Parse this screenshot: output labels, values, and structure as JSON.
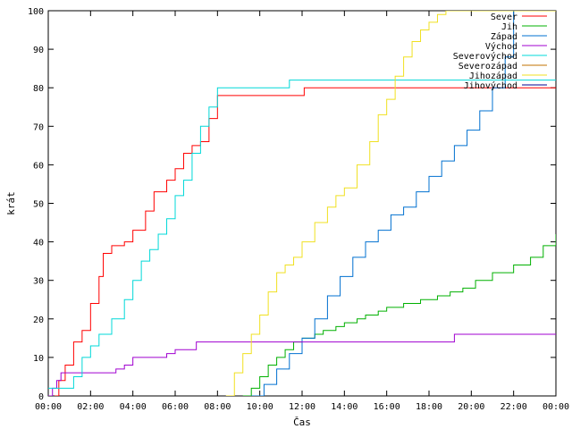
{
  "chart_data": {
    "type": "line",
    "title": "",
    "xlabel": "Čas",
    "ylabel": "krát",
    "xlim": [
      0,
      24
    ],
    "ylim": [
      0,
      100
    ],
    "x_ticks": [
      "00:00",
      "02:00",
      "04:00",
      "06:00",
      "08:00",
      "10:00",
      "12:00",
      "14:00",
      "16:00",
      "18:00",
      "20:00",
      "22:00",
      "00:00"
    ],
    "y_ticks": [
      0,
      10,
      20,
      30,
      40,
      50,
      60,
      70,
      80,
      90,
      100
    ],
    "grid": false,
    "legend_position": "top-right",
    "series": [
      {
        "name": "Sever",
        "color": "#ff0000",
        "x": [
          0.3,
          0.5,
          0.8,
          1.2,
          1.6,
          2.0,
          2.4,
          2.6,
          3.0,
          3.6,
          4.0,
          4.6,
          5.0,
          5.6,
          6.0,
          6.4,
          6.8,
          7.2,
          7.6,
          8.0,
          12.0,
          12.1,
          24.0
        ],
        "y": [
          0,
          4,
          8,
          14,
          17,
          24,
          31,
          37,
          39,
          40,
          43,
          48,
          53,
          56,
          59,
          63,
          65,
          66,
          72,
          78,
          78,
          80,
          80
        ]
      },
      {
        "name": "Jih",
        "color": "#00b000",
        "x": [
          9.2,
          9.6,
          10.0,
          10.4,
          10.8,
          11.2,
          11.6,
          12.0,
          12.6,
          13.0,
          13.6,
          14.0,
          14.6,
          15.0,
          15.6,
          16.0,
          16.8,
          17.6,
          18.4,
          19.0,
          19.6,
          20.2,
          21.0,
          22.0,
          22.8,
          23.4,
          24.0
        ],
        "y": [
          0,
          2,
          5,
          8,
          10,
          12,
          14,
          15,
          16,
          17,
          18,
          19,
          20,
          21,
          22,
          23,
          24,
          25,
          26,
          27,
          28,
          30,
          32,
          34,
          36,
          39,
          42
        ]
      },
      {
        "name": "Západ",
        "color": "#0070d0",
        "x": [
          9.6,
          10.2,
          10.8,
          11.4,
          12.0,
          12.6,
          13.2,
          13.8,
          14.4,
          15.0,
          15.6,
          16.2,
          16.8,
          17.4,
          18.0,
          18.6,
          19.2,
          19.8,
          20.4,
          21.0,
          21.6,
          22.0,
          24.0
        ],
        "y": [
          0,
          3,
          7,
          11,
          15,
          20,
          26,
          31,
          36,
          40,
          43,
          47,
          49,
          53,
          57,
          61,
          65,
          69,
          74,
          80,
          88,
          100,
          100
        ]
      },
      {
        "name": "Východ",
        "color": "#a000d0",
        "x": [
          0,
          0.2,
          0.4,
          0.6,
          1.2,
          1.8,
          2.4,
          3.0,
          3.2,
          3.6,
          4.0,
          5.2,
          5.6,
          6.0,
          6.8,
          7.0,
          10.0,
          19.0,
          19.2,
          24.0
        ],
        "y": [
          0,
          2,
          4,
          6,
          6,
          6,
          6,
          6,
          7,
          8,
          10,
          10,
          11,
          12,
          12,
          14,
          14,
          14,
          16,
          16
        ]
      },
      {
        "name": "Severovýchod",
        "color": "#00d8d8",
        "x": [
          0,
          1.0,
          1.2,
          1.6,
          2.0,
          2.4,
          3.0,
          3.6,
          4.0,
          4.4,
          4.8,
          5.2,
          5.6,
          6.0,
          6.4,
          6.8,
          7.2,
          7.6,
          8.0,
          11.2,
          11.4,
          24.0
        ],
        "y": [
          2,
          2,
          5,
          10,
          13,
          16,
          20,
          25,
          30,
          35,
          38,
          42,
          46,
          52,
          56,
          63,
          70,
          75,
          80,
          80,
          82,
          82
        ]
      },
      {
        "name": "Severozápad",
        "color": "#c07000",
        "x": [],
        "y": []
      },
      {
        "name": "Jihozápad",
        "color": "#f0e020",
        "x": [
          8.4,
          8.8,
          9.2,
          9.6,
          10.0,
          10.4,
          10.8,
          11.2,
          11.6,
          12.0,
          12.6,
          13.2,
          13.6,
          14.0,
          14.6,
          15.2,
          15.6,
          16.0,
          16.4,
          16.8,
          17.2,
          17.6,
          18.0,
          18.4,
          18.8,
          19.2,
          24.0
        ],
        "y": [
          0,
          6,
          11,
          16,
          21,
          27,
          32,
          34,
          36,
          40,
          45,
          49,
          52,
          54,
          60,
          66,
          73,
          77,
          83,
          88,
          92,
          95,
          97,
          99,
          100,
          100,
          100
        ]
      },
      {
        "name": "Jihovýchod",
        "color": "#000090",
        "x": [],
        "y": []
      }
    ]
  }
}
